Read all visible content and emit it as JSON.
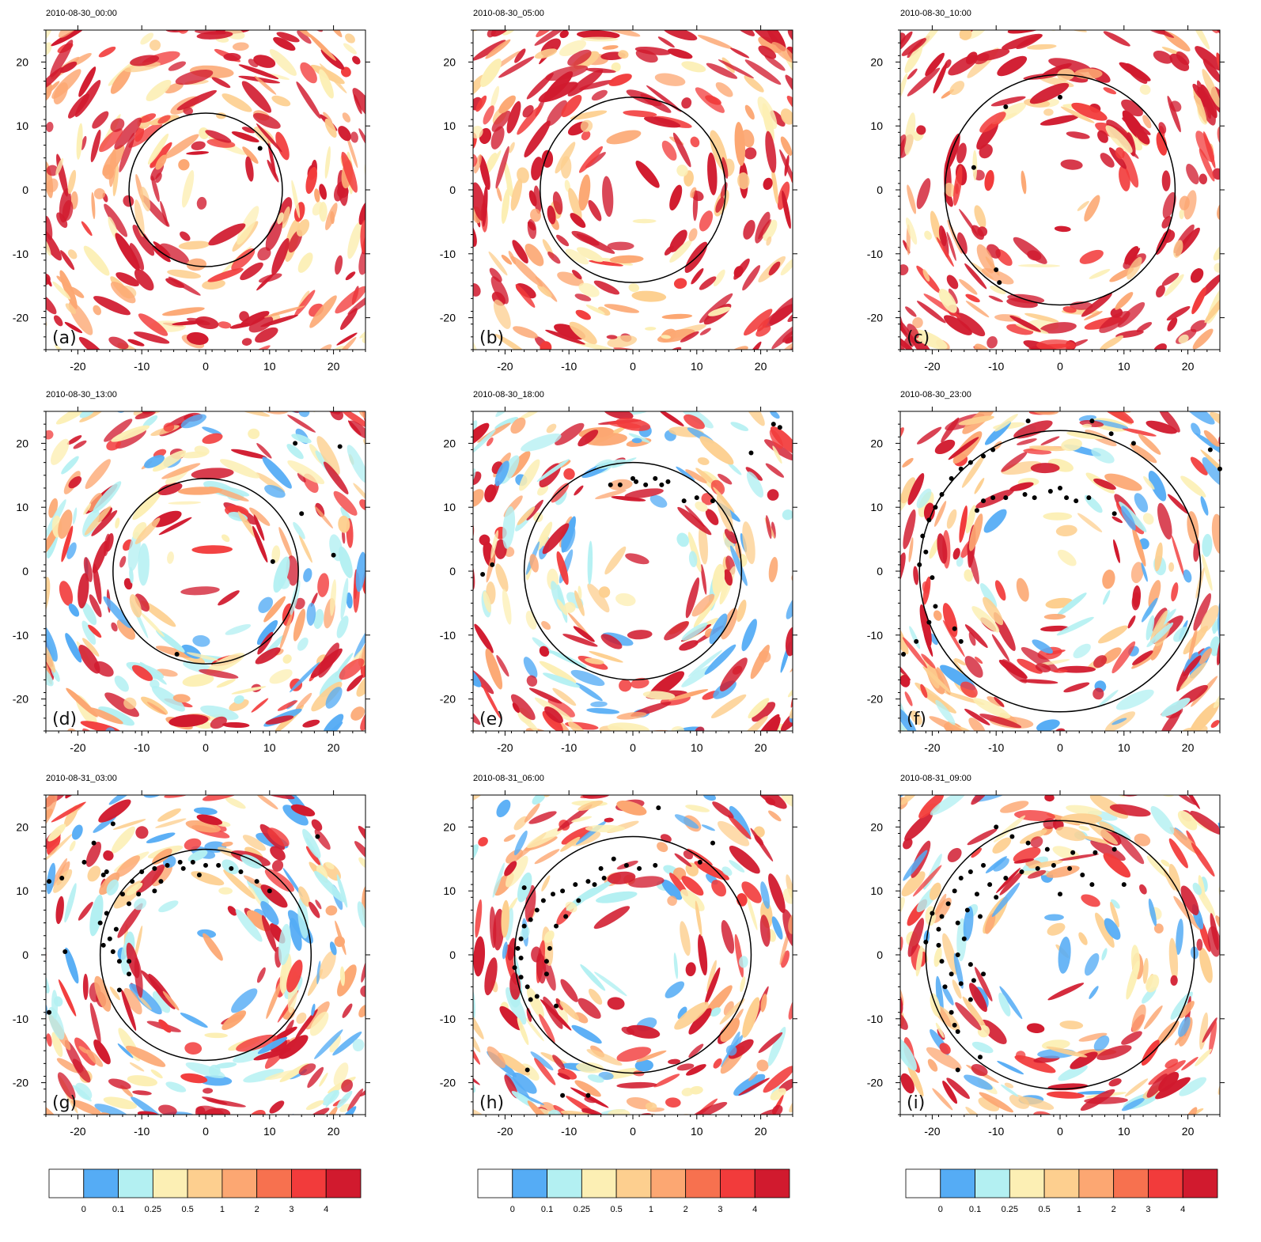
{
  "figure": {
    "colors": {
      "levels": [
        "#ffffff",
        "#55acf5",
        "#b3f0f2",
        "#fcefb4",
        "#fdcf8f",
        "#fca772",
        "#f7714f",
        "#f23b3b",
        "#d11a2e"
      ],
      "circle": "#000000",
      "points": "#000000"
    },
    "colorbar": {
      "labels": [
        "0",
        "0.1",
        "0.25",
        "0.5",
        "1",
        "2",
        "3",
        "4"
      ]
    }
  },
  "chart_data": [
    {
      "type": "heatmap",
      "title": "2010-08-30_00:00",
      "panel_label": "(a)",
      "xlim": [
        -25,
        25
      ],
      "ylim": [
        -25,
        25
      ],
      "xticks": [
        -20,
        -10,
        0,
        10,
        20
      ],
      "yticks": [
        -20,
        -10,
        0,
        10,
        20
      ],
      "xtick_labels": [
        "-20",
        "-10",
        "0",
        "10",
        "20"
      ],
      "ytick_labels": [
        "-20",
        "-10",
        "0",
        "10",
        "20"
      ],
      "circle_radius": 12,
      "points": [
        [
          8.5,
          6.5
        ]
      ]
    },
    {
      "type": "heatmap",
      "title": "2010-08-30_05:00",
      "panel_label": "(b)",
      "xlim": [
        -25,
        25
      ],
      "ylim": [
        -25,
        25
      ],
      "xticks": [
        -20,
        -10,
        0,
        10,
        20
      ],
      "yticks": [
        -20,
        -10,
        0,
        10,
        20
      ],
      "xtick_labels": [
        "-20",
        "-10",
        "0",
        "10",
        "20"
      ],
      "ytick_labels": [
        "-20",
        "-10",
        "0",
        "10",
        "20"
      ],
      "circle_radius": 14.5,
      "points": []
    },
    {
      "type": "heatmap",
      "title": "2010-08-30_10:00",
      "panel_label": "(c)",
      "xlim": [
        -25,
        25
      ],
      "ylim": [
        -25,
        25
      ],
      "xticks": [
        -20,
        -10,
        0,
        10,
        20
      ],
      "yticks": [
        -20,
        -10,
        0,
        10,
        20
      ],
      "xtick_labels": [
        "-20",
        "-10",
        "0",
        "10",
        "20"
      ],
      "ytick_labels": [
        "-20",
        "-10",
        "0",
        "10",
        "20"
      ],
      "circle_radius": 18,
      "points": [
        [
          -8.5,
          13.0
        ],
        [
          0.0,
          14.5
        ],
        [
          -13.5,
          3.5
        ],
        [
          -10.0,
          -12.5
        ],
        [
          -9.5,
          -14.5
        ]
      ]
    },
    {
      "type": "heatmap",
      "title": "2010-08-30_13:00",
      "panel_label": "(d)",
      "xlim": [
        -25,
        25
      ],
      "ylim": [
        -25,
        25
      ],
      "xticks": [
        -20,
        -10,
        0,
        10,
        20
      ],
      "yticks": [
        -20,
        -10,
        0,
        10,
        20
      ],
      "xtick_labels": [
        "-20",
        "-10",
        "0",
        "10",
        "20"
      ],
      "ytick_labels": [
        "-20",
        "-10",
        "0",
        "10",
        "20"
      ],
      "circle_radius": 14.5,
      "points": [
        [
          14.0,
          20.0
        ],
        [
          21.0,
          19.5
        ],
        [
          15.0,
          9.0
        ],
        [
          20.0,
          2.5
        ],
        [
          10.5,
          1.5
        ],
        [
          -4.5,
          -13.0
        ]
      ]
    },
    {
      "type": "heatmap",
      "title": "2010-08-30_18:00",
      "panel_label": "(e)",
      "xlim": [
        -25,
        25
      ],
      "ylim": [
        -25,
        25
      ],
      "xticks": [
        -20,
        -10,
        0,
        10,
        20
      ],
      "yticks": [
        -20,
        -10,
        0,
        10,
        20
      ],
      "xtick_labels": [
        "-20",
        "-10",
        "0",
        "10",
        "20"
      ],
      "ytick_labels": [
        "-20",
        "-10",
        "0",
        "10",
        "20"
      ],
      "circle_radius": 17,
      "points": [
        [
          -3.5,
          13.5
        ],
        [
          -2.0,
          13.5
        ],
        [
          0.0,
          14.5
        ],
        [
          0.5,
          14.0
        ],
        [
          2.0,
          13.5
        ],
        [
          3.5,
          14.5
        ],
        [
          4.5,
          13.5
        ],
        [
          5.5,
          14.0
        ],
        [
          8.0,
          11.0
        ],
        [
          10.0,
          11.5
        ],
        [
          12.5,
          11.0
        ],
        [
          18.5,
          18.5
        ],
        [
          22.0,
          23.0
        ],
        [
          23.0,
          22.5
        ],
        [
          -22.0,
          1.0
        ],
        [
          -23.5,
          -0.5
        ]
      ]
    },
    {
      "type": "heatmap",
      "title": "2010-08-30_23:00",
      "panel_label": "(f)",
      "xlim": [
        -25,
        25
      ],
      "ylim": [
        -25,
        25
      ],
      "xticks": [
        -20,
        -10,
        0,
        10,
        20
      ],
      "yticks": [
        -20,
        -10,
        0,
        10,
        20
      ],
      "xtick_labels": [
        "-20",
        "-10",
        "0",
        "10",
        "20"
      ],
      "ytick_labels": [
        "-20",
        "-10",
        "0",
        "10",
        "20"
      ],
      "circle_radius": 22,
      "points": [
        [
          -5.0,
          23.5
        ],
        [
          5.0,
          23.5
        ],
        [
          8.0,
          21.5
        ],
        [
          11.5,
          20.0
        ],
        [
          -10.5,
          19.0
        ],
        [
          -12.0,
          18.0
        ],
        [
          -14.0,
          17.0
        ],
        [
          -15.5,
          16.0
        ],
        [
          -17.0,
          14.5
        ],
        [
          -18.5,
          12.0
        ],
        [
          -19.5,
          10.0
        ],
        [
          -20.5,
          8.0
        ],
        [
          -21.5,
          5.5
        ],
        [
          -21.0,
          3.0
        ],
        [
          -22.0,
          1.0
        ],
        [
          -20.0,
          -1.0
        ],
        [
          -19.5,
          -5.5
        ],
        [
          -20.5,
          -8.0
        ],
        [
          -22.5,
          -11.0
        ],
        [
          -24.5,
          -13.0
        ],
        [
          -16.5,
          -9.0
        ],
        [
          -15.5,
          -11.0
        ],
        [
          -12.0,
          11.0
        ],
        [
          -10.5,
          11.5
        ],
        [
          -8.5,
          11.5
        ],
        [
          -5.5,
          12.0
        ],
        [
          -4.0,
          11.5
        ],
        [
          -1.5,
          12.5
        ],
        [
          0.0,
          13.0
        ],
        [
          1.0,
          11.5
        ],
        [
          2.5,
          11.0
        ],
        [
          4.5,
          11.5
        ],
        [
          8.5,
          9.0
        ],
        [
          -13.0,
          9.5
        ],
        [
          23.5,
          19.0
        ],
        [
          25.0,
          16.0
        ]
      ]
    },
    {
      "type": "heatmap",
      "title": "2010-08-31_03:00",
      "panel_label": "(g)",
      "xlim": [
        -25,
        25
      ],
      "ylim": [
        -25,
        25
      ],
      "xticks": [
        -20,
        -10,
        0,
        10,
        20
      ],
      "yticks": [
        -20,
        -10,
        0,
        10,
        20
      ],
      "xtick_labels": [
        "-20",
        "-10",
        "0",
        "10",
        "20"
      ],
      "ytick_labels": [
        "-20",
        "-10",
        "0",
        "10",
        "20"
      ],
      "circle_radius": 16.5,
      "points": [
        [
          -14.5,
          20.5
        ],
        [
          -19.0,
          14.5
        ],
        [
          -17.5,
          17.5
        ],
        [
          -16.0,
          12.5
        ],
        [
          -15.5,
          13.0
        ],
        [
          -22.5,
          12.0
        ],
        [
          -24.5,
          11.5
        ],
        [
          -13.0,
          9.5
        ],
        [
          -11.5,
          11.5
        ],
        [
          -10.0,
          13.0
        ],
        [
          -8.0,
          13.5
        ],
        [
          -6.0,
          14.0
        ],
        [
          -4.0,
          14.5
        ],
        [
          -2.0,
          14.5
        ],
        [
          0.0,
          14.0
        ],
        [
          2.0,
          14.0
        ],
        [
          4.0,
          13.5
        ],
        [
          5.5,
          13.0
        ],
        [
          8.0,
          11.5
        ],
        [
          10.0,
          10.0
        ],
        [
          17.5,
          18.5
        ],
        [
          -15.5,
          6.5
        ],
        [
          -16.5,
          5.0
        ],
        [
          -14.0,
          4.0
        ],
        [
          -15.0,
          2.5
        ],
        [
          -16.0,
          1.5
        ],
        [
          -14.5,
          0.5
        ],
        [
          -13.5,
          -1.0
        ],
        [
          -12.0,
          -3.0
        ],
        [
          -13.5,
          -5.5
        ],
        [
          -12.0,
          8.0
        ],
        [
          -10.5,
          9.5
        ],
        [
          -8.0,
          10.0
        ],
        [
          -7.0,
          11.5
        ],
        [
          -3.5,
          13.5
        ],
        [
          -1.0,
          12.5
        ],
        [
          -24.5,
          -9.0
        ],
        [
          -22.0,
          0.5
        ],
        [
          -12.0,
          -1.0
        ]
      ]
    },
    {
      "type": "heatmap",
      "title": "2010-08-31_06:00",
      "panel_label": "(h)",
      "xlim": [
        -25,
        25
      ],
      "ylim": [
        -25,
        25
      ],
      "xticks": [
        -20,
        -10,
        0,
        10,
        20
      ],
      "yticks": [
        -20,
        -10,
        0,
        10,
        20
      ],
      "xtick_labels": [
        "-20",
        "-10",
        "0",
        "10",
        "20"
      ],
      "ytick_labels": [
        "-20",
        "-10",
        "0",
        "10",
        "20"
      ],
      "circle_radius": 18.5,
      "points": [
        [
          4.0,
          23.0
        ],
        [
          12.5,
          17.5
        ],
        [
          10.5,
          14.5
        ],
        [
          -3.0,
          15.0
        ],
        [
          -1.0,
          14.0
        ],
        [
          1.0,
          13.5
        ],
        [
          3.5,
          14.0
        ],
        [
          -5.0,
          13.5
        ],
        [
          -7.0,
          11.5
        ],
        [
          -9.0,
          11.0
        ],
        [
          -11.0,
          10.0
        ],
        [
          -12.5,
          9.5
        ],
        [
          -14.0,
          8.5
        ],
        [
          -15.0,
          7.0
        ],
        [
          -16.0,
          5.5
        ],
        [
          -17.0,
          4.5
        ],
        [
          -17.5,
          2.5
        ],
        [
          -18.0,
          1.0
        ],
        [
          -17.5,
          -0.5
        ],
        [
          -18.5,
          -2.0
        ],
        [
          -17.5,
          -3.5
        ],
        [
          -16.5,
          -5.0
        ],
        [
          -16.0,
          -7.0
        ],
        [
          -15.0,
          -6.5
        ],
        [
          -13.5,
          -3.0
        ],
        [
          -13.0,
          1.0
        ],
        [
          -12.0,
          4.5
        ],
        [
          -10.5,
          6.0
        ],
        [
          -8.5,
          8.5
        ],
        [
          -6.0,
          11.0
        ],
        [
          -4.5,
          12.0
        ],
        [
          -16.5,
          -18.0
        ],
        [
          -11.0,
          -22.0
        ],
        [
          -7.0,
          -22.0
        ],
        [
          -17.0,
          10.5
        ],
        [
          -13.5,
          -1.0
        ],
        [
          -12.0,
          -8.0
        ]
      ]
    },
    {
      "type": "heatmap",
      "title": "2010-08-31_09:00",
      "panel_label": "(i)",
      "xlim": [
        -25,
        25
      ],
      "ylim": [
        -25,
        25
      ],
      "xticks": [
        -20,
        -10,
        0,
        10,
        20
      ],
      "yticks": [
        -20,
        -10,
        0,
        10,
        20
      ],
      "xtick_labels": [
        "-20",
        "-10",
        "0",
        "10",
        "20"
      ],
      "ytick_labels": [
        "-20",
        "-10",
        "0",
        "10",
        "20"
      ],
      "circle_radius": 21,
      "points": [
        [
          -10.0,
          20.0
        ],
        [
          -7.5,
          18.5
        ],
        [
          -5.0,
          17.5
        ],
        [
          -2.0,
          16.5
        ],
        [
          2.0,
          16.0
        ],
        [
          5.5,
          16.0
        ],
        [
          8.5,
          16.5
        ],
        [
          -12.0,
          14.0
        ],
        [
          -14.0,
          13.0
        ],
        [
          -15.5,
          12.0
        ],
        [
          -16.5,
          10.0
        ],
        [
          -17.5,
          8.0
        ],
        [
          -18.5,
          6.0
        ],
        [
          -19.0,
          4.0
        ],
        [
          -19.0,
          1.5
        ],
        [
          -18.5,
          -1.0
        ],
        [
          -17.0,
          -3.0
        ],
        [
          -15.5,
          -4.5
        ],
        [
          -13.5,
          -4.0
        ],
        [
          -12.0,
          -3.0
        ],
        [
          -14.0,
          -1.5
        ],
        [
          -16.0,
          0.0
        ],
        [
          -15.0,
          2.5
        ],
        [
          -16.0,
          5.0
        ],
        [
          -14.5,
          7.0
        ],
        [
          -13.0,
          9.5
        ],
        [
          -11.0,
          11.0
        ],
        [
          -8.5,
          12.0
        ],
        [
          -6.0,
          13.0
        ],
        [
          -3.5,
          13.5
        ],
        [
          -1.0,
          14.0
        ],
        [
          1.5,
          13.5
        ],
        [
          3.5,
          12.5
        ],
        [
          5.0,
          11.0
        ],
        [
          -17.0,
          -9.0
        ],
        [
          -16.5,
          -11.0
        ],
        [
          -16.0,
          -12.0
        ],
        [
          -12.5,
          -16.0
        ],
        [
          -16.0,
          -18.0
        ],
        [
          -20.0,
          6.5
        ],
        [
          -21.0,
          2.0
        ],
        [
          -18.0,
          -5.0
        ],
        [
          -14.0,
          -7.0
        ],
        [
          -12.5,
          6.0
        ],
        [
          -10.0,
          9.0
        ],
        [
          0.0,
          9.5
        ],
        [
          10.0,
          11.0
        ]
      ]
    }
  ]
}
